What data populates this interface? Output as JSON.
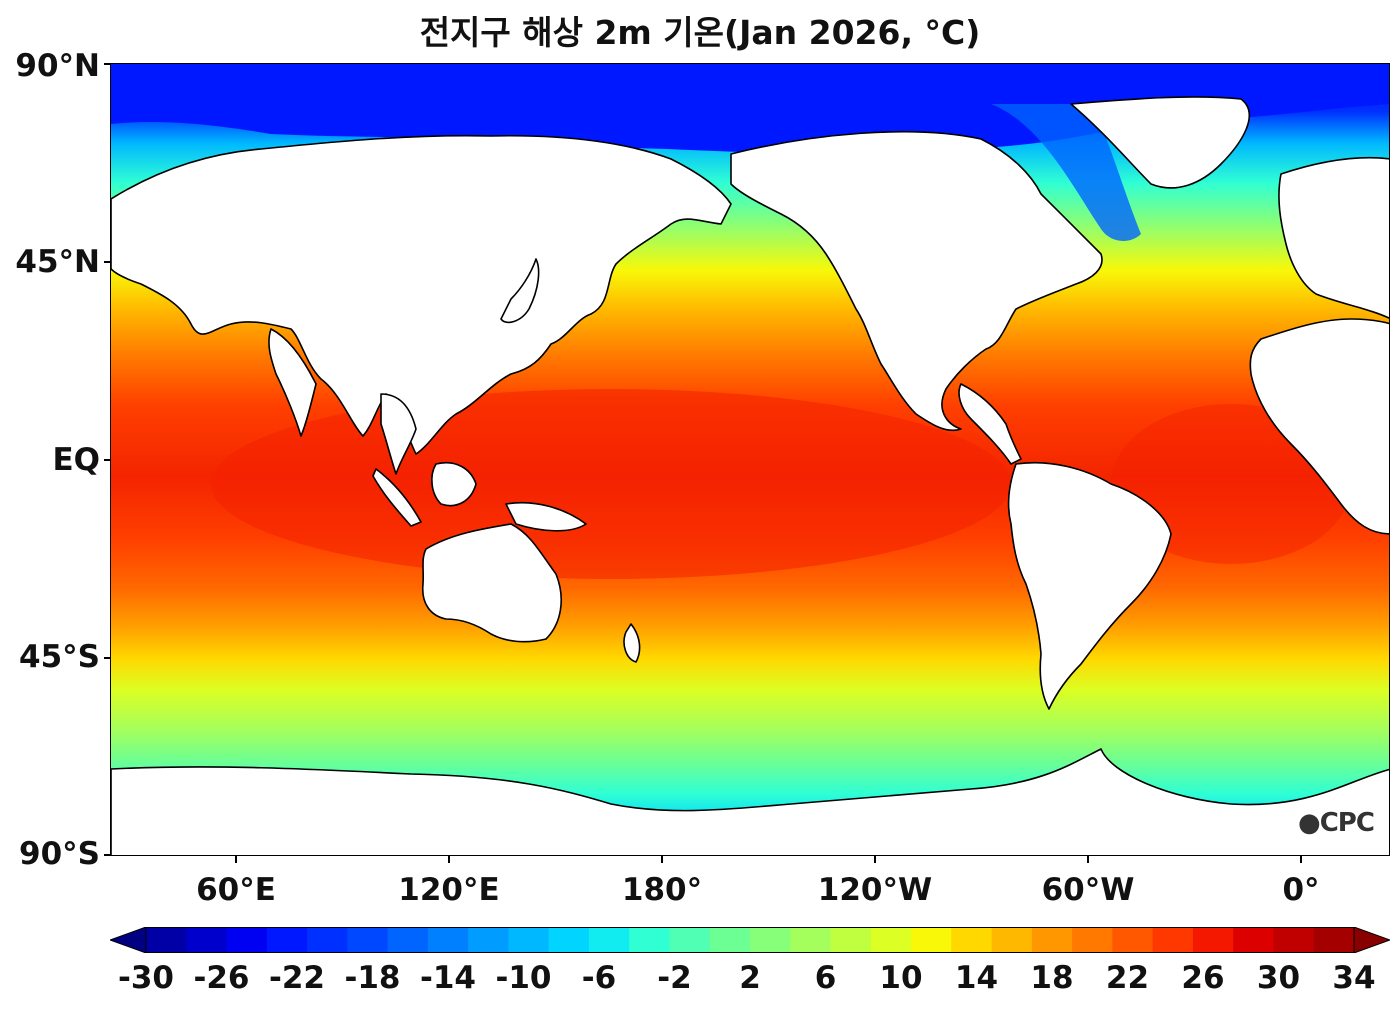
{
  "title": "전지구 해상 2m 기온(Jan 2026, °C)",
  "logo_text": "CPC",
  "axes": {
    "y_ticks": [
      "90°N",
      "45°N",
      "EQ",
      "45°S",
      "90°S"
    ],
    "x_ticks": [
      "60°E",
      "120°E",
      "180°",
      "120°W",
      "60°W",
      "0°"
    ]
  },
  "colorbar": {
    "labels": [
      "-30",
      "-26",
      "-22",
      "-18",
      "-14",
      "-10",
      "-6",
      "-2",
      "2",
      "6",
      "10",
      "14",
      "18",
      "22",
      "26",
      "30",
      "34"
    ],
    "min": -32,
    "max": 36,
    "step": 2,
    "colors": [
      "#000080",
      "#0000a6",
      "#0000cc",
      "#0000f2",
      "#0018ff",
      "#0030ff",
      "#0048ff",
      "#0064ff",
      "#0080ff",
      "#009cff",
      "#00b8ff",
      "#00d4ff",
      "#10ecf0",
      "#30ffd4",
      "#50ffb4",
      "#6cff94",
      "#88ff78",
      "#a4ff5c",
      "#c0ff40",
      "#dcff24",
      "#f8f808",
      "#ffd800",
      "#ffb800",
      "#ff9800",
      "#ff7800",
      "#ff5800",
      "#ff3800",
      "#f41800",
      "#dc0000",
      "#c00000",
      "#a40000",
      "#880000"
    ]
  },
  "colors": {
    "land": "#ffffff",
    "coastline": "#000000",
    "ice_sea": "#0018ff",
    "tropics": "#f42400",
    "subtropics": "#ff6800",
    "midlat": "#ffd800",
    "subpolar": "#50ffb4"
  }
}
